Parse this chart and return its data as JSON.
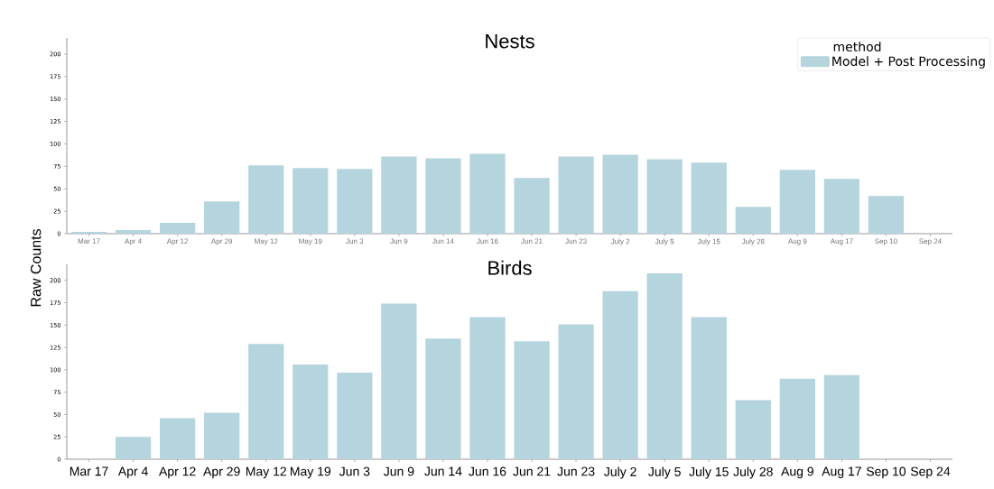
{
  "chart_data": [
    {
      "type": "bar",
      "title": "Nests",
      "ylabel": "Raw Counts",
      "legend": "top right",
      "legend_title": "method",
      "categories": [
        "Mar 17",
        "Apr 4",
        "Apr 12",
        "Apr 29",
        "May 12",
        "May 19",
        "Jun 3",
        "Jun 9",
        "Jun 14",
        "Jun 16",
        "Jun 21",
        "Jun 23",
        "July 2",
        "July 5",
        "July 15",
        "July 28",
        "Aug 9",
        "Aug 17",
        "Sep 10",
        "Sep 24"
      ],
      "series": [
        {
          "name": "Model + Post Processing",
          "color": "#b4d4de",
          "values": [
            2,
            4,
            12,
            36,
            76,
            73,
            72,
            86,
            84,
            89,
            62,
            86,
            88,
            83,
            79,
            30,
            71,
            61,
            42,
            0
          ]
        }
      ],
      "ylim": [
        0,
        218
      ],
      "yticks": [
        0,
        25,
        50,
        75,
        100,
        125,
        150,
        175,
        200
      ]
    },
    {
      "type": "bar",
      "title": "Birds",
      "categories": [
        "Mar 17",
        "Apr 4",
        "Apr 12",
        "Apr 29",
        "May 12",
        "May 19",
        "Jun 3",
        "Jun 9",
        "Jun 14",
        "Jun 16",
        "Jun 21",
        "Jun 23",
        "July 2",
        "July 5",
        "July 15",
        "July 28",
        "Aug 9",
        "Aug 17",
        "Sep 10",
        "Sep 24"
      ],
      "series": [
        {
          "color": "#b4d4de",
          "values": [
            0,
            25,
            46,
            52,
            129,
            106,
            97,
            174,
            135,
            159,
            132,
            151,
            188,
            208,
            159,
            66,
            90,
            94,
            0,
            0
          ]
        }
      ],
      "ylim": [
        0,
        218
      ],
      "yticks": [
        0,
        25,
        50,
        75,
        100,
        125,
        150,
        175,
        200
      ]
    }
  ]
}
